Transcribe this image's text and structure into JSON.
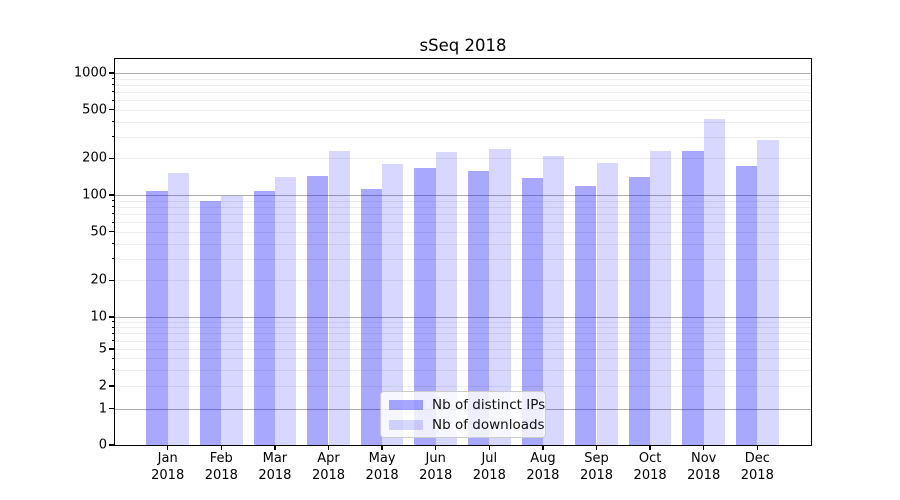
{
  "chart_data": {
    "type": "bar",
    "title": "sSeq 2018",
    "categories": [
      "Jan 2018",
      "Feb 2018",
      "Mar 2018",
      "Apr 2018",
      "May 2018",
      "Jun 2018",
      "Jul 2018",
      "Aug 2018",
      "Sep 2018",
      "Oct 2018",
      "Nov 2018",
      "Dec 2018"
    ],
    "series": [
      {
        "name": "Nb of distinct IPs",
        "values": [
          107,
          90,
          108,
          143,
          111,
          166,
          157,
          137,
          119,
          141,
          229,
          174
        ]
      },
      {
        "name": "Nb of downloads",
        "values": [
          152,
          98,
          141,
          231,
          179,
          227,
          238,
          209,
          182,
          229,
          420,
          282
        ]
      }
    ],
    "xlabel": "",
    "ylabel": "",
    "yscale": "symlog",
    "yticks": [
      0,
      1,
      2,
      5,
      10,
      20,
      50,
      100,
      200,
      500,
      1000
    ],
    "ylim": [
      0,
      1280
    ],
    "grid": "horizontal",
    "legend_position": "lower-center-inside"
  },
  "colors": {
    "ips_bar": "rgba(0,0,255,0.34)",
    "downloads_bar": "rgba(0,0,255,0.155)",
    "grid_major": "#adadad",
    "grid_minor": "#ededed",
    "spine": "#000000",
    "legend_border": "#cccccc"
  }
}
